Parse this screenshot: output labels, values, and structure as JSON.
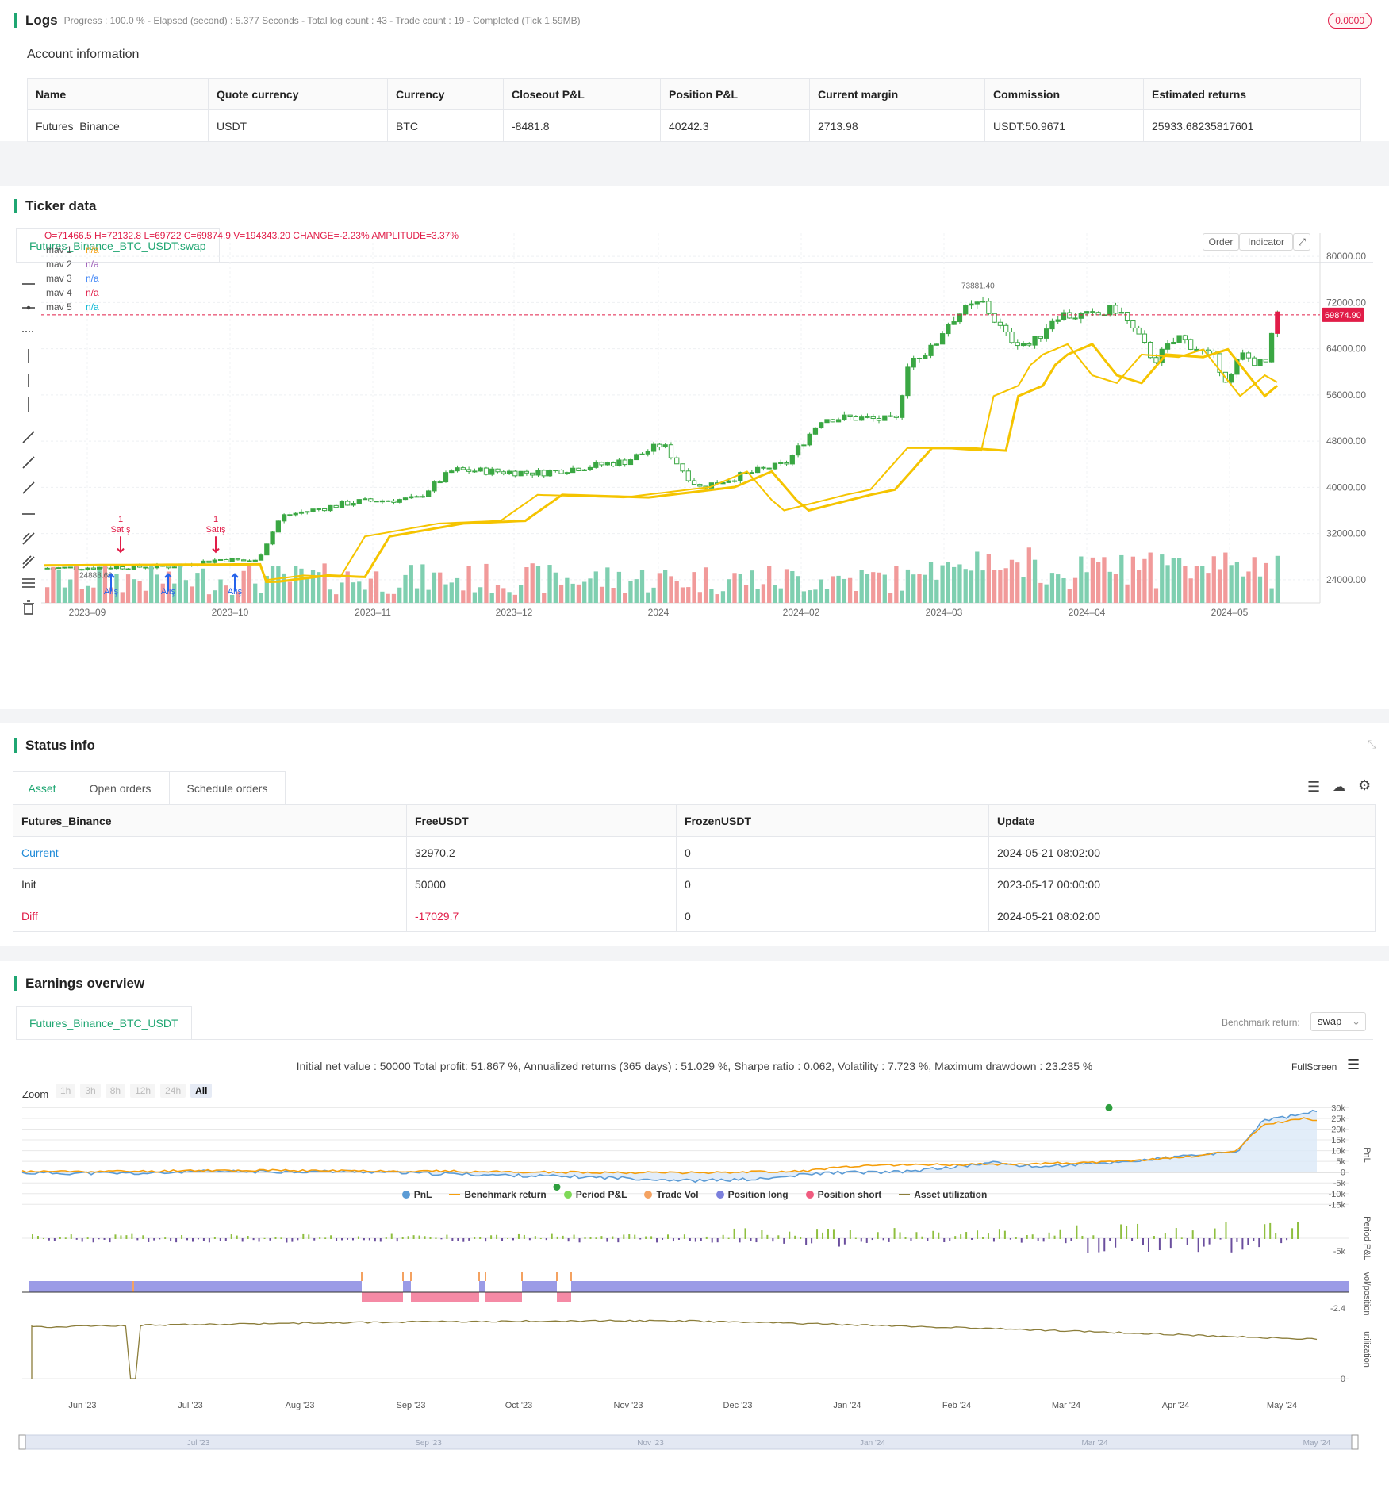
{
  "logs": {
    "title": "Logs",
    "progress": "Progress : 100.0 % - Elapsed (second) : 5.377  Seconds - Total log count : 43 - Trade count : 19 - Completed (Tick 1.59MB)",
    "badge": "0.0000"
  },
  "account": {
    "title": "Account information",
    "headers": [
      "Name",
      "Quote currency",
      "Currency",
      "Closeout P&L",
      "Position P&L",
      "Current margin",
      "Commission",
      "Estimated returns"
    ],
    "row": [
      "Futures_Binance",
      "USDT",
      "BTC",
      "-8481.8",
      "40242.3",
      "2713.98",
      "USDT:50.9671",
      "25933.68235817601"
    ]
  },
  "ticker": {
    "title": "Ticker data",
    "tab": "Futures_Binance_BTC_USDT:swap",
    "ohlc": "O=71466.5 H=72132.8 L=69722 C=69874.9 V=194343.20 CHANGE=-2.23% AMPLITUDE=3.37%",
    "legend": [
      {
        "name": "mav 1",
        "value": "n/a",
        "color": "#f59e0b"
      },
      {
        "name": "mav 2",
        "value": "n/a",
        "color": "#9b59b6"
      },
      {
        "name": "mav 3",
        "value": "n/a",
        "color": "#3b82f6"
      },
      {
        "name": "mav 4",
        "value": "n/a",
        "color": "#e11d48"
      },
      {
        "name": "mav 5",
        "value": "n/a",
        "color": "#06b6d4"
      }
    ],
    "buttons": {
      "order": "Order",
      "indicator": "Indicator"
    },
    "last_price": "69874.90",
    "high_label": "73881.40",
    "low_label": "24888.60",
    "sell_label": "Satış",
    "buy_label": "Alış",
    "signal_count": "1",
    "y_ticks": [
      "80000.00",
      "72000.00",
      "64000.00",
      "56000.00",
      "48000.00",
      "40000.00",
      "32000.00",
      "24000.00"
    ],
    "x_ticks": [
      "2023–09",
      "2023–10",
      "2023–11",
      "2023–12",
      "2024",
      "2024–02",
      "2024–03",
      "2024–04",
      "2024–05"
    ]
  },
  "status": {
    "title": "Status info",
    "tabs": [
      "Asset",
      "Open orders",
      "Schedule orders"
    ],
    "headers": [
      "Futures_Binance",
      "FreeUSDT",
      "FrozenUSDT",
      "Update"
    ],
    "rows": [
      [
        "Current",
        "32970.2",
        "0",
        "2024-05-21 08:02:00"
      ],
      [
        "Init",
        "50000",
        "0",
        "2023-05-17 00:00:00"
      ],
      [
        "Diff",
        "-17029.7",
        "0",
        "2024-05-21 08:02:00"
      ]
    ]
  },
  "earnings": {
    "title": "Earnings overview",
    "tab": "Futures_Binance_BTC_USDT",
    "benchmark_label": "Benchmark return:",
    "benchmark_value": "swap",
    "summary": "Initial net value : 50000 Total profit: 51.867 %, Annualized returns (365 days) : 51.029 %, Sharpe ratio : 0.062, Volatility : 7.723 %, Maximum drawdown : 23.235 %",
    "fullscreen": "FullScreen",
    "zoom_label": "Zoom",
    "zoom_options": [
      "1h",
      "3h",
      "8h",
      "12h",
      "24h",
      "All"
    ],
    "pnl_ticks": [
      "30k",
      "25k",
      "20k",
      "15k",
      "10k",
      "5k",
      "0",
      "-5k",
      "-10k",
      "-15k"
    ],
    "axis_titles": [
      "PnL",
      "Period P&L",
      "vol/position",
      "utilization"
    ],
    "period_tick": "-5k",
    "vol_tick": "-2.4",
    "util_tick": "0",
    "x_ticks": [
      "Jun '23",
      "Jul '23",
      "Aug '23",
      "Sep '23",
      "Oct '23",
      "Nov '23",
      "Dec '23",
      "Jan '24",
      "Feb '24",
      "Mar '24",
      "Apr '24",
      "May '24"
    ],
    "nav_ticks": [
      "Jul '23",
      "Sep '23",
      "Nov '23",
      "Jan '24",
      "Mar '24",
      "May '24"
    ],
    "legend": [
      {
        "name": "PnL",
        "color": "#5b9bd5"
      },
      {
        "name": "Benchmark return",
        "color": "#f59e0b"
      },
      {
        "name": "Period P&L",
        "color": "#7ed957"
      },
      {
        "name": "Trade Vol",
        "color": "#f4a261"
      },
      {
        "name": "Position long",
        "color": "#7b7fdc"
      },
      {
        "name": "Position short",
        "color": "#f05b7f"
      },
      {
        "name": "Asset utilization",
        "color": "#8b7d3a"
      }
    ]
  }
}
